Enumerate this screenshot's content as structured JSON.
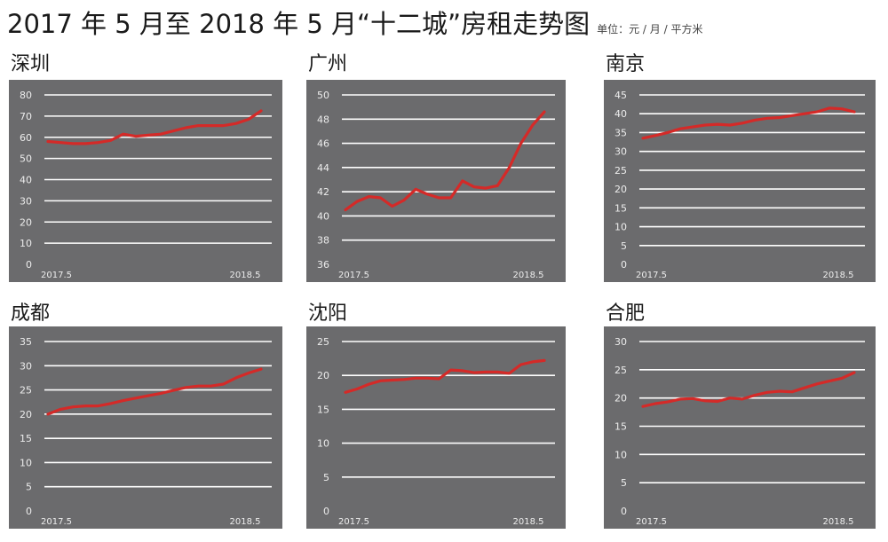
{
  "header": {
    "title": "2017 年 5 月至 2018 年 5 月“十二城”房租走势图",
    "unit": "单位：元 / 月 / 平方米"
  },
  "colors": {
    "panel": "#6b6b6d",
    "grid": "#ffffff",
    "line": "#d42a28",
    "text": "#ececec"
  },
  "chart_data": [
    {
      "type": "line",
      "city": "深圳",
      "y_ticks": [
        0,
        10,
        20,
        30,
        40,
        50,
        60,
        70,
        80
      ],
      "ylim": [
        0,
        80
      ],
      "x_labels": [
        "2017.5",
        "2018.5"
      ],
      "values": [
        58,
        57.5,
        57,
        57,
        57.5,
        58.5,
        61.5,
        60.5,
        61,
        61.5,
        63,
        64.5,
        65.5,
        65.5,
        65.5,
        66.5,
        68.5,
        72.5
      ],
      "grid": true
    },
    {
      "type": "line",
      "city": "广州",
      "y_ticks": [
        36,
        38,
        40,
        42,
        44,
        46,
        48,
        50
      ],
      "ylim": [
        36,
        50
      ],
      "x_labels": [
        "2017.5",
        "2018.5"
      ],
      "values": [
        40.5,
        41.2,
        41.6,
        41.5,
        40.8,
        41.3,
        42.2,
        41.8,
        41.5,
        41.5,
        42.9,
        42.4,
        42.3,
        42.5,
        44.0,
        46.0,
        47.5,
        48.6
      ],
      "grid": true
    },
    {
      "type": "line",
      "city": "南京",
      "y_ticks": [
        0,
        5,
        10,
        15,
        20,
        25,
        30,
        35,
        40,
        45
      ],
      "ylim": [
        0,
        45
      ],
      "x_labels": [
        "2017.5",
        "2018.5"
      ],
      "values": [
        33.5,
        34.2,
        35.0,
        36.0,
        36.5,
        37.0,
        37.2,
        37.0,
        37.5,
        38.3,
        38.8,
        39.0,
        39.5,
        40.0,
        40.5,
        41.5,
        41.3,
        40.5
      ],
      "grid": true
    },
    {
      "type": "line",
      "city": "成都",
      "y_ticks": [
        0,
        5,
        10,
        15,
        20,
        25,
        30,
        35
      ],
      "ylim": [
        0,
        35
      ],
      "x_labels": [
        "2017.5",
        "2018.5"
      ],
      "values": [
        20.0,
        21.0,
        21.5,
        21.7,
        21.7,
        22.2,
        22.8,
        23.3,
        23.8,
        24.3,
        24.9,
        25.5,
        25.8,
        25.8,
        26.2,
        27.5,
        28.5,
        29.3
      ],
      "grid": true
    },
    {
      "type": "line",
      "city": "沈阳",
      "y_ticks": [
        0,
        5,
        10,
        15,
        20,
        25
      ],
      "ylim": [
        0,
        25
      ],
      "x_labels": [
        "2017.5",
        "2018.5"
      ],
      "values": [
        17.5,
        18.0,
        18.7,
        19.2,
        19.3,
        19.4,
        19.6,
        19.6,
        19.5,
        20.8,
        20.7,
        20.4,
        20.5,
        20.5,
        20.3,
        21.6,
        22.0,
        22.2
      ],
      "grid": true
    },
    {
      "type": "line",
      "city": "合肥",
      "y_ticks": [
        0,
        5,
        10,
        15,
        20,
        25,
        30
      ],
      "ylim": [
        0,
        30
      ],
      "x_labels": [
        "2017.5",
        "2018.5"
      ],
      "values": [
        18.5,
        19.0,
        19.3,
        19.8,
        19.9,
        19.5,
        19.4,
        20.0,
        19.8,
        20.5,
        21.0,
        21.2,
        21.1,
        21.8,
        22.5,
        23.0,
        23.5,
        24.5
      ],
      "grid": true
    }
  ]
}
